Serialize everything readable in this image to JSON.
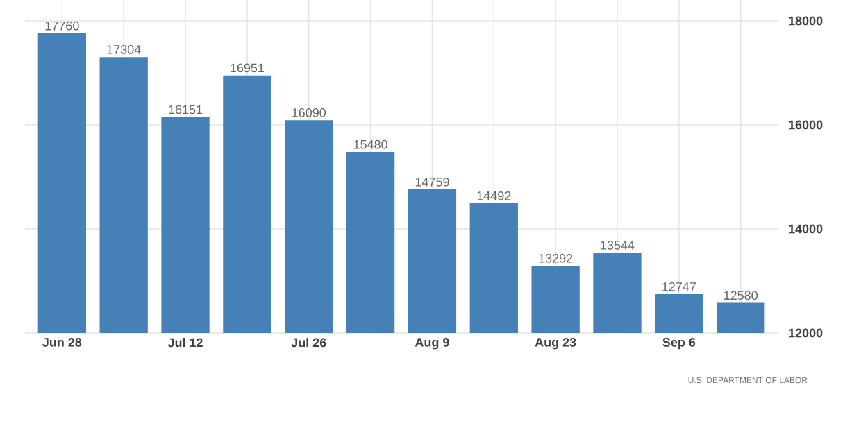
{
  "chart_data": {
    "type": "bar",
    "categories": [
      "Jun 28",
      null,
      "Jul 12",
      null,
      "Jul 26",
      null,
      "Aug 9",
      null,
      "Aug 23",
      null,
      "Sep 6",
      null
    ],
    "values": [
      17760,
      17304,
      16151,
      16951,
      16090,
      15480,
      14759,
      14492,
      13292,
      13544,
      12747,
      12580
    ],
    "color": "#4580b7",
    "ylim": [
      12000,
      18400
    ],
    "yticks": [
      12000,
      14000,
      16000,
      18000
    ],
    "grid": true,
    "data_labels": true,
    "annotations": [
      "U.S. DEPARTMENT OF LABOR"
    ]
  }
}
